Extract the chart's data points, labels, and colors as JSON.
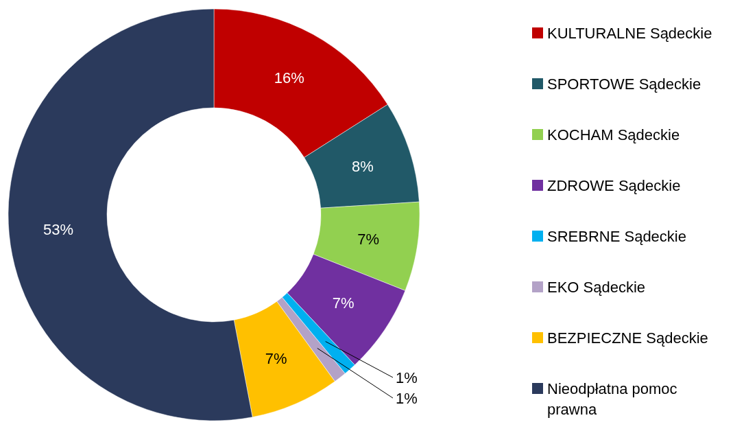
{
  "chart_data": {
    "type": "donut",
    "categories": [
      "KULTURALNE Sądeckie",
      "SPORTOWE Sądeckie",
      "KOCHAM Sądeckie",
      "ZDROWE Sądeckie",
      "SREBRNE Sądeckie",
      "EKO Sądeckie",
      "BEZPIECZNE Sądeckie",
      "Nieodpłatna pomoc prawna"
    ],
    "values": [
      16,
      8,
      7,
      7,
      1,
      1,
      7,
      53
    ],
    "colors": [
      "#c00000",
      "#215968",
      "#92d050",
      "#7030a0",
      "#00b0f0",
      "#b3a2c7",
      "#ffc000",
      "#2b3a5c"
    ],
    "value_labels": [
      "16%",
      "8%",
      "7%",
      "7%",
      "1%",
      "1%",
      "7%",
      "53%"
    ],
    "legend": "right"
  }
}
